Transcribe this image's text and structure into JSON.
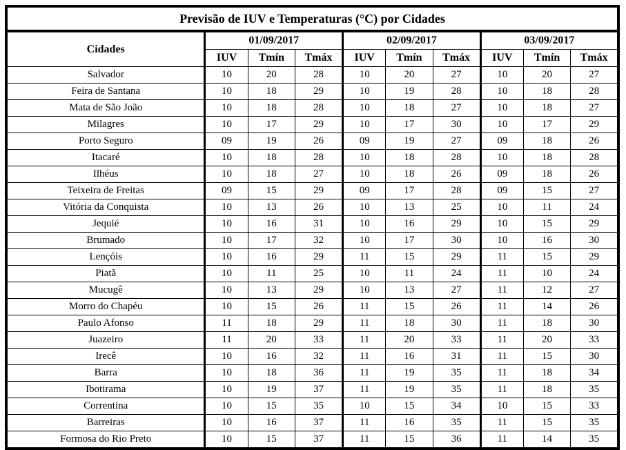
{
  "title": "Previsão de IUV e Temperaturas (°C) por Cidades",
  "table": {
    "city_header": "Cidades",
    "dates": [
      "01/09/2017",
      "02/09/2017",
      "03/09/2017"
    ],
    "sub_headers": [
      "IUV",
      "Tmín",
      "Tmáx"
    ],
    "rows": [
      {
        "city": "Salvador",
        "values": [
          [
            "10",
            "20",
            "28"
          ],
          [
            "10",
            "20",
            "27"
          ],
          [
            "10",
            "20",
            "27"
          ]
        ]
      },
      {
        "city": "Feira de Santana",
        "values": [
          [
            "10",
            "18",
            "29"
          ],
          [
            "10",
            "19",
            "28"
          ],
          [
            "10",
            "18",
            "28"
          ]
        ]
      },
      {
        "city": "Mata de São João",
        "values": [
          [
            "10",
            "18",
            "28"
          ],
          [
            "10",
            "18",
            "27"
          ],
          [
            "10",
            "18",
            "27"
          ]
        ]
      },
      {
        "city": "Milagres",
        "values": [
          [
            "10",
            "17",
            "29"
          ],
          [
            "10",
            "17",
            "30"
          ],
          [
            "10",
            "17",
            "29"
          ]
        ]
      },
      {
        "city": "Porto Seguro",
        "values": [
          [
            "09",
            "19",
            "26"
          ],
          [
            "09",
            "19",
            "27"
          ],
          [
            "09",
            "18",
            "26"
          ]
        ]
      },
      {
        "city": "Itacaré",
        "values": [
          [
            "10",
            "18",
            "28"
          ],
          [
            "10",
            "18",
            "28"
          ],
          [
            "10",
            "18",
            "28"
          ]
        ]
      },
      {
        "city": "Ilhéus",
        "values": [
          [
            "10",
            "18",
            "27"
          ],
          [
            "10",
            "18",
            "26"
          ],
          [
            "09",
            "18",
            "26"
          ]
        ]
      },
      {
        "city": "Teixeira de Freitas",
        "values": [
          [
            "09",
            "15",
            "29"
          ],
          [
            "09",
            "17",
            "28"
          ],
          [
            "09",
            "15",
            "27"
          ]
        ]
      },
      {
        "city": "Vitória da Conquista",
        "values": [
          [
            "10",
            "13",
            "26"
          ],
          [
            "10",
            "13",
            "25"
          ],
          [
            "10",
            "11",
            "24"
          ]
        ]
      },
      {
        "city": "Jequié",
        "values": [
          [
            "10",
            "16",
            "31"
          ],
          [
            "10",
            "16",
            "29"
          ],
          [
            "10",
            "15",
            "29"
          ]
        ]
      },
      {
        "city": "Brumado",
        "values": [
          [
            "10",
            "17",
            "32"
          ],
          [
            "10",
            "17",
            "30"
          ],
          [
            "10",
            "16",
            "30"
          ]
        ]
      },
      {
        "city": "Lençóis",
        "values": [
          [
            "10",
            "16",
            "29"
          ],
          [
            "11",
            "15",
            "29"
          ],
          [
            "11",
            "15",
            "29"
          ]
        ]
      },
      {
        "city": "Piatã",
        "values": [
          [
            "10",
            "11",
            "25"
          ],
          [
            "10",
            "11",
            "24"
          ],
          [
            "11",
            "10",
            "24"
          ]
        ]
      },
      {
        "city": "Mucugê",
        "values": [
          [
            "10",
            "13",
            "29"
          ],
          [
            "10",
            "13",
            "27"
          ],
          [
            "11",
            "12",
            "27"
          ]
        ]
      },
      {
        "city": "Morro do Chapéu",
        "values": [
          [
            "10",
            "15",
            "26"
          ],
          [
            "11",
            "15",
            "26"
          ],
          [
            "11",
            "14",
            "26"
          ]
        ]
      },
      {
        "city": "Paulo Afonso",
        "values": [
          [
            "11",
            "18",
            "29"
          ],
          [
            "11",
            "18",
            "30"
          ],
          [
            "11",
            "18",
            "30"
          ]
        ]
      },
      {
        "city": "Juazeiro",
        "values": [
          [
            "11",
            "20",
            "33"
          ],
          [
            "11",
            "20",
            "33"
          ],
          [
            "11",
            "20",
            "33"
          ]
        ]
      },
      {
        "city": "Irecê",
        "values": [
          [
            "10",
            "16",
            "32"
          ],
          [
            "11",
            "16",
            "31"
          ],
          [
            "11",
            "15",
            "30"
          ]
        ]
      },
      {
        "city": "Barra",
        "values": [
          [
            "10",
            "18",
            "36"
          ],
          [
            "11",
            "19",
            "35"
          ],
          [
            "11",
            "18",
            "34"
          ]
        ]
      },
      {
        "city": "Ibotirama",
        "values": [
          [
            "10",
            "19",
            "37"
          ],
          [
            "11",
            "19",
            "35"
          ],
          [
            "11",
            "18",
            "35"
          ]
        ]
      },
      {
        "city": "Correntina",
        "values": [
          [
            "10",
            "15",
            "35"
          ],
          [
            "10",
            "15",
            "34"
          ],
          [
            "10",
            "15",
            "33"
          ]
        ]
      },
      {
        "city": "Barreiras",
        "values": [
          [
            "10",
            "16",
            "37"
          ],
          [
            "11",
            "16",
            "35"
          ],
          [
            "11",
            "15",
            "35"
          ]
        ]
      },
      {
        "city": "Formosa do Rio Preto",
        "values": [
          [
            "10",
            "15",
            "37"
          ],
          [
            "11",
            "15",
            "36"
          ],
          [
            "11",
            "14",
            "35"
          ]
        ]
      }
    ]
  }
}
